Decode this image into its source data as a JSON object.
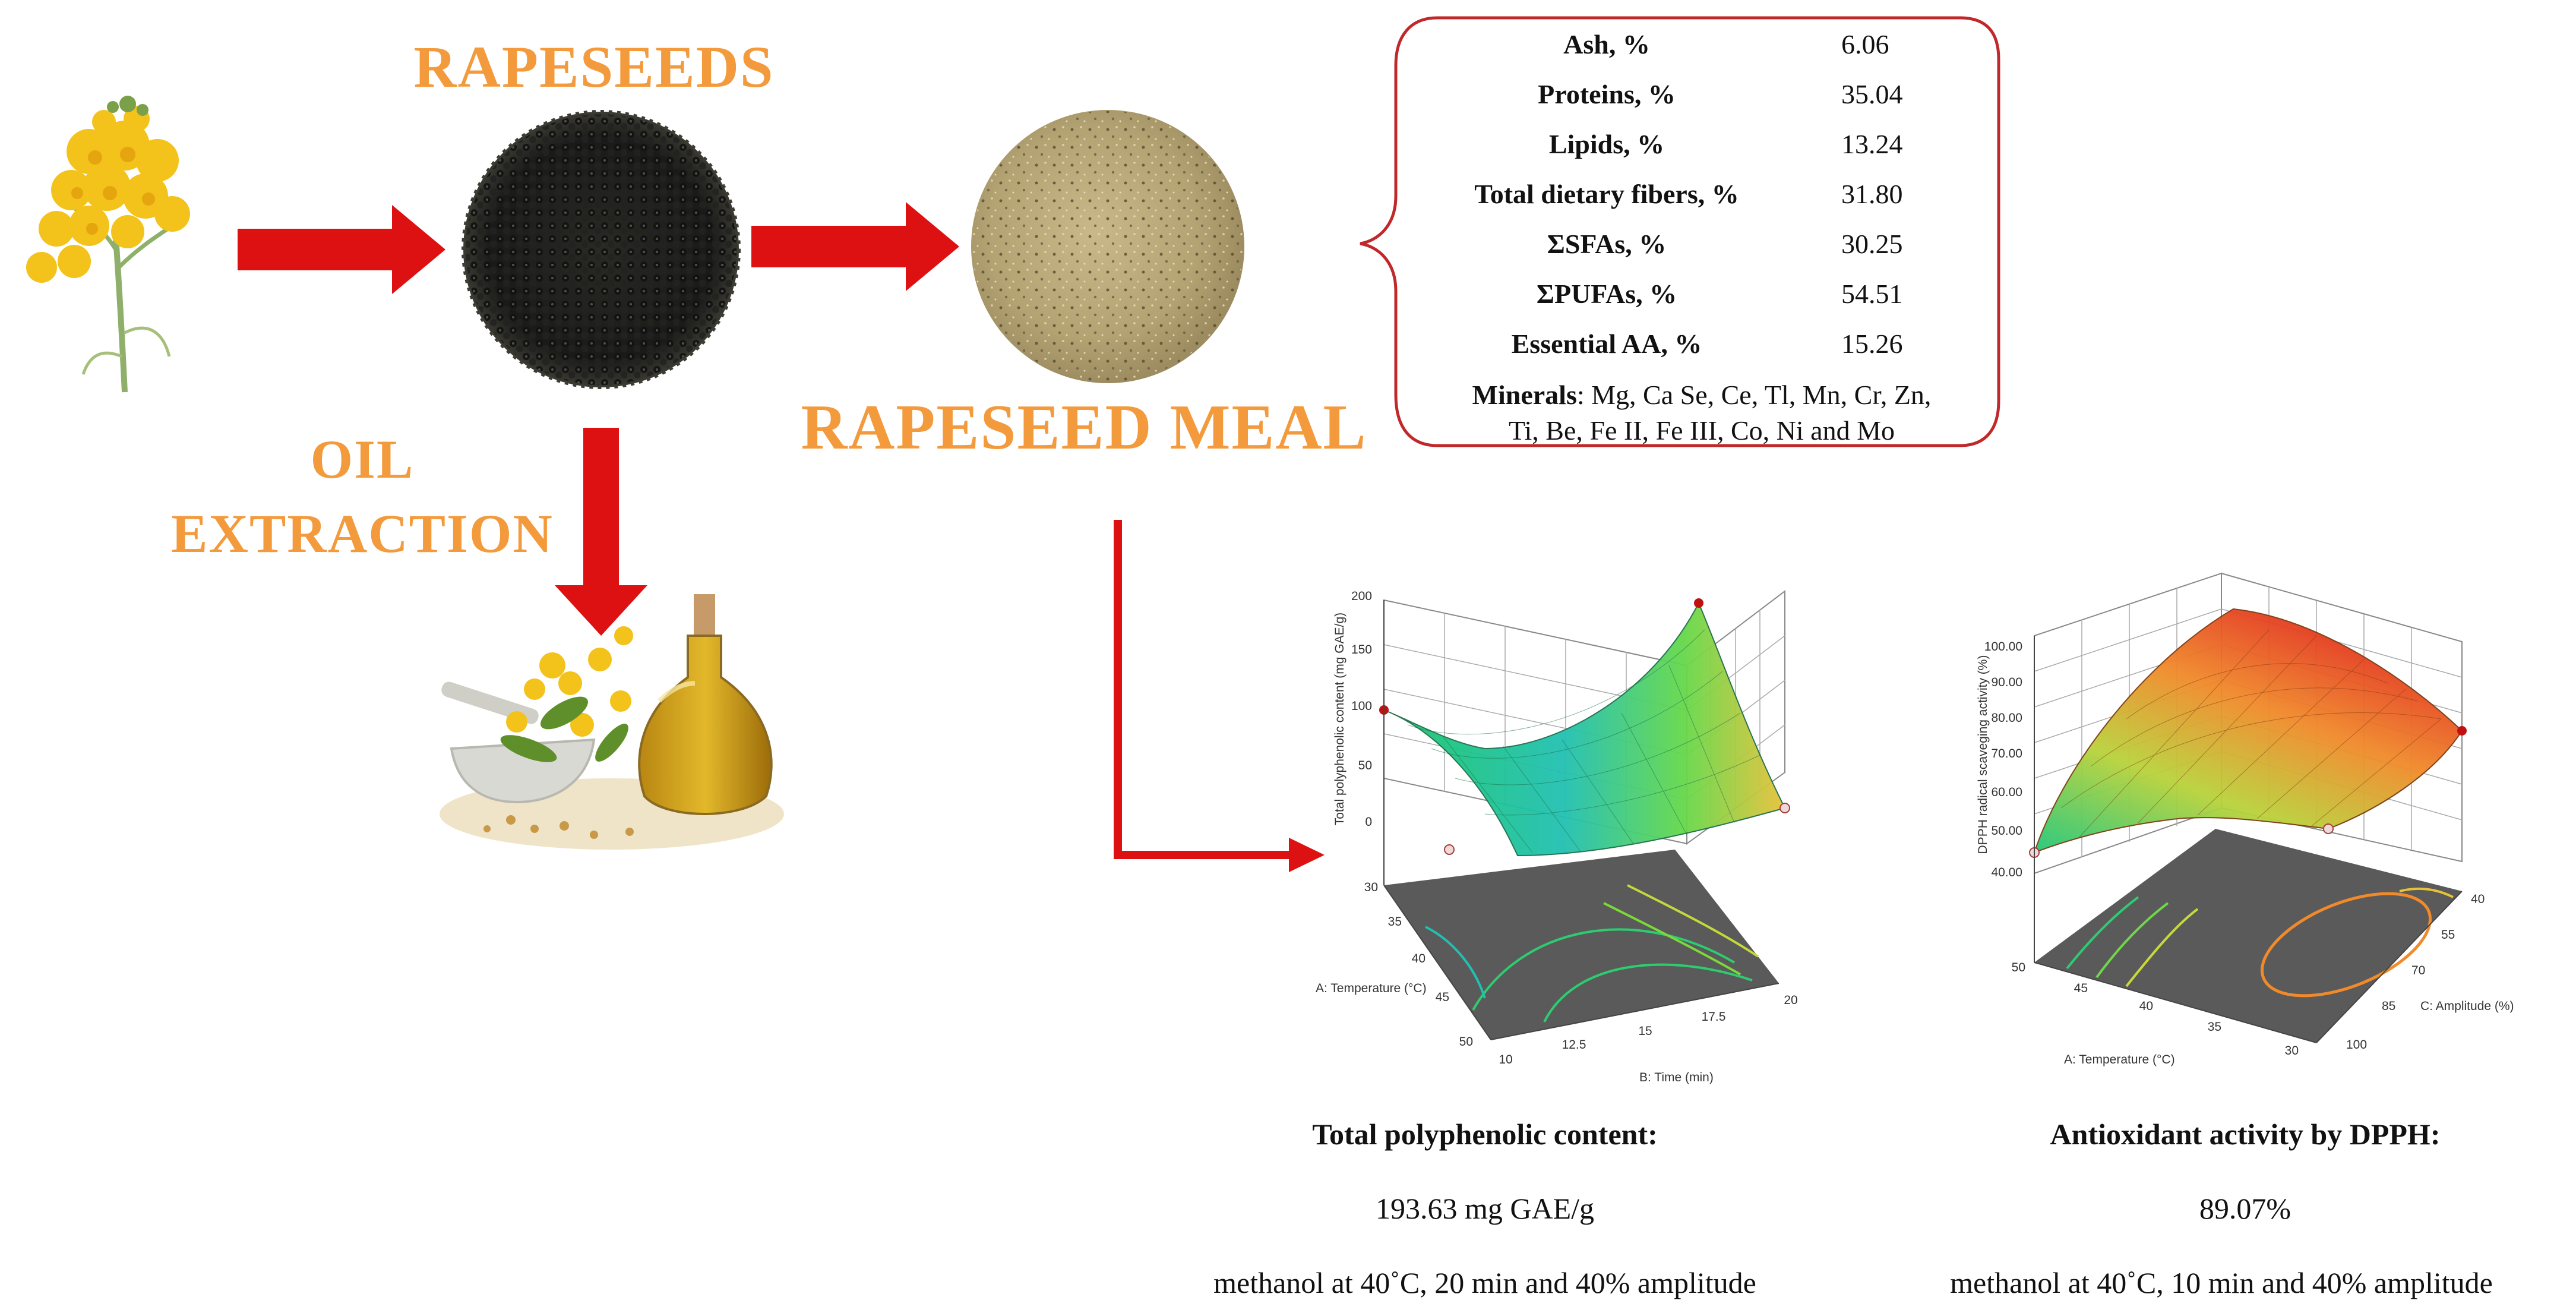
{
  "labels": {
    "rapeseeds": "RAPESEEDS",
    "oil_extraction_line1": "OIL",
    "oil_extraction_line2": "EXTRACTION",
    "rapeseed_meal": "RAPESEED MEAL"
  },
  "composition": [
    {
      "label": "Ash, %",
      "value": "6.06"
    },
    {
      "label": "Proteins, %",
      "value": "35.04"
    },
    {
      "label": "Lipids, %",
      "value": "13.24"
    },
    {
      "label": "Total dietary fibers, %",
      "value": "31.80"
    },
    {
      "label": "ΣSFAs, %",
      "value": "30.25"
    },
    {
      "label": "ΣPUFAs, %",
      "value": "54.51"
    },
    {
      "label": "Essential AA, %",
      "value": "15.26"
    }
  ],
  "minerals": {
    "label": "Minerals",
    "line1": ": Mg, Ca Se, Ce, Tl, Mn, Cr, Zn,",
    "line2": "Ti, Be, Fe II, Fe III, Co, Ni and Mo"
  },
  "plot1": {
    "z_axis_label": "Total polyphenolic content (mg GAE/g)",
    "z_ticks": [
      "200",
      "150",
      "100",
      "50",
      "0"
    ],
    "a_axis_label": "A: Temperature (°C)",
    "a_ticks": [
      "30",
      "35",
      "40",
      "45",
      "50"
    ],
    "b_axis_label": "B: Time (min)",
    "b_ticks": [
      "10",
      "12.5",
      "15",
      "17.5",
      "20"
    ]
  },
  "plot2": {
    "z_axis_label": "DPPH radical scaveging activity (%)",
    "z_ticks": [
      "100.00",
      "90.00",
      "80.00",
      "70.00",
      "60.00",
      "50.00",
      "40.00"
    ],
    "a_axis_label": "A: Temperature (°C)",
    "a_ticks": [
      "50",
      "45",
      "40",
      "35",
      "30"
    ],
    "c_axis_label": "C: Amplitude (%)",
    "c_ticks": [
      "40",
      "55",
      "70",
      "85",
      "100"
    ]
  },
  "caption1": {
    "title": "Total polyphenolic content:",
    "value": "193.63 mg GAE/g",
    "conditions": "methanol at 40˚C, 20 min and 40% amplitude"
  },
  "caption2": {
    "title": "Antioxidant activity by DPPH:",
    "value": "89.07%",
    "conditions": "methanol at 40˚C, 10 min and 40% amplitude"
  },
  "colors": {
    "label_orange": "#f39a3c",
    "arrow_red": "#dd1111",
    "box_border": "#c0282a"
  }
}
